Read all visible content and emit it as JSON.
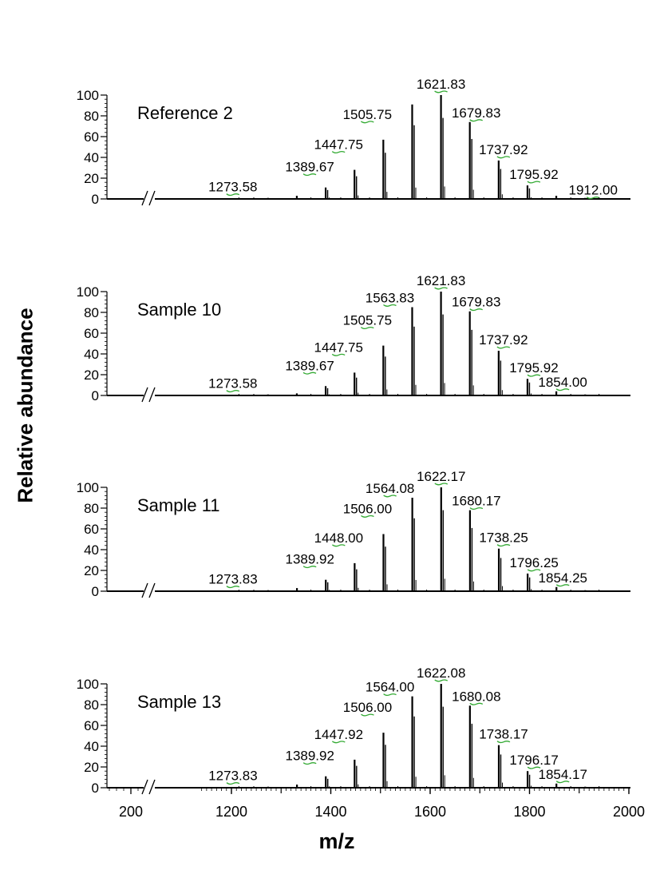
{
  "chart_data": {
    "type": "bar",
    "ylabel": "Relative abundance",
    "xlabel": "m/z",
    "ylim": [
      0,
      100
    ],
    "yticks": [
      0,
      20,
      40,
      60,
      80,
      100
    ],
    "axis_break": "//",
    "xticks": [
      {
        "label": "200",
        "value": 200
      },
      {
        "label": "1200",
        "value": 1200
      },
      {
        "label": "1400",
        "value": 1400
      },
      {
        "label": "1600",
        "value": 1600
      },
      {
        "label": "1800",
        "value": 1800
      },
      {
        "label": "2000",
        "value": 2000
      }
    ],
    "line_color": "#000000",
    "label_marker_color": "#33aa33",
    "panels": [
      {
        "name": "Reference 2",
        "peaks": [
          {
            "mz": 1273.58,
            "y": 1,
            "label": "1273.58"
          },
          {
            "mz": 1331.6,
            "y": 3
          },
          {
            "mz": 1389.67,
            "y": 11,
            "label": "1389.67"
          },
          {
            "mz": 1447.75,
            "y": 28,
            "label": "1447.75"
          },
          {
            "mz": 1505.75,
            "y": 57,
            "label": "1505.75"
          },
          {
            "mz": 1563.83,
            "y": 91
          },
          {
            "mz": 1621.83,
            "y": 100,
            "label": "1621.83"
          },
          {
            "mz": 1679.83,
            "y": 74,
            "label": "1679.83"
          },
          {
            "mz": 1737.92,
            "y": 37,
            "label": "1737.92"
          },
          {
            "mz": 1795.92,
            "y": 13,
            "label": "1795.92"
          },
          {
            "mz": 1853.9,
            "y": 3
          },
          {
            "mz": 1912.0,
            "y": 1,
            "label": "1912.00"
          }
        ]
      },
      {
        "name": "Sample 10",
        "peaks": [
          {
            "mz": 1273.58,
            "y": 1,
            "label": "1273.58"
          },
          {
            "mz": 1331.6,
            "y": 2
          },
          {
            "mz": 1389.67,
            "y": 9,
            "label": "1389.67"
          },
          {
            "mz": 1447.75,
            "y": 22,
            "label": "1447.75"
          },
          {
            "mz": 1505.75,
            "y": 48,
            "label": "1505.75"
          },
          {
            "mz": 1563.83,
            "y": 85,
            "label": "1563.83"
          },
          {
            "mz": 1621.83,
            "y": 100,
            "label": "1621.83"
          },
          {
            "mz": 1679.83,
            "y": 81,
            "label": "1679.83"
          },
          {
            "mz": 1737.92,
            "y": 43,
            "label": "1737.92"
          },
          {
            "mz": 1795.92,
            "y": 16,
            "label": "1795.92"
          },
          {
            "mz": 1854.0,
            "y": 4,
            "label": "1854.00"
          },
          {
            "mz": 1912.0,
            "y": 1
          }
        ]
      },
      {
        "name": "Sample 11",
        "peaks": [
          {
            "mz": 1273.83,
            "y": 1,
            "label": "1273.83"
          },
          {
            "mz": 1331.9,
            "y": 3
          },
          {
            "mz": 1389.92,
            "y": 11,
            "label": "1389.92"
          },
          {
            "mz": 1448.0,
            "y": 27,
            "label": "1448.00"
          },
          {
            "mz": 1506.0,
            "y": 55,
            "label": "1506.00"
          },
          {
            "mz": 1564.08,
            "y": 90,
            "label": "1564.08"
          },
          {
            "mz": 1622.17,
            "y": 100,
            "label": "1622.17"
          },
          {
            "mz": 1680.17,
            "y": 78,
            "label": "1680.17"
          },
          {
            "mz": 1738.25,
            "y": 41,
            "label": "1738.25"
          },
          {
            "mz": 1796.25,
            "y": 17,
            "label": "1796.25"
          },
          {
            "mz": 1854.25,
            "y": 4,
            "label": "1854.25"
          },
          {
            "mz": 1912.2,
            "y": 1
          }
        ]
      },
      {
        "name": "Sample 13",
        "peaks": [
          {
            "mz": 1273.83,
            "y": 1,
            "label": "1273.83"
          },
          {
            "mz": 1331.9,
            "y": 3
          },
          {
            "mz": 1389.92,
            "y": 11,
            "label": "1389.92"
          },
          {
            "mz": 1447.92,
            "y": 27,
            "label": "1447.92"
          },
          {
            "mz": 1506.0,
            "y": 53,
            "label": "1506.00"
          },
          {
            "mz": 1564.0,
            "y": 88,
            "label": "1564.00"
          },
          {
            "mz": 1622.08,
            "y": 100,
            "label": "1622.08"
          },
          {
            "mz": 1680.08,
            "y": 79,
            "label": "1680.08"
          },
          {
            "mz": 1738.17,
            "y": 41,
            "label": "1738.17"
          },
          {
            "mz": 1796.17,
            "y": 16,
            "label": "1796.17"
          },
          {
            "mz": 1854.17,
            "y": 4,
            "label": "1854.17"
          },
          {
            "mz": 1912.1,
            "y": 1
          }
        ]
      }
    ]
  }
}
